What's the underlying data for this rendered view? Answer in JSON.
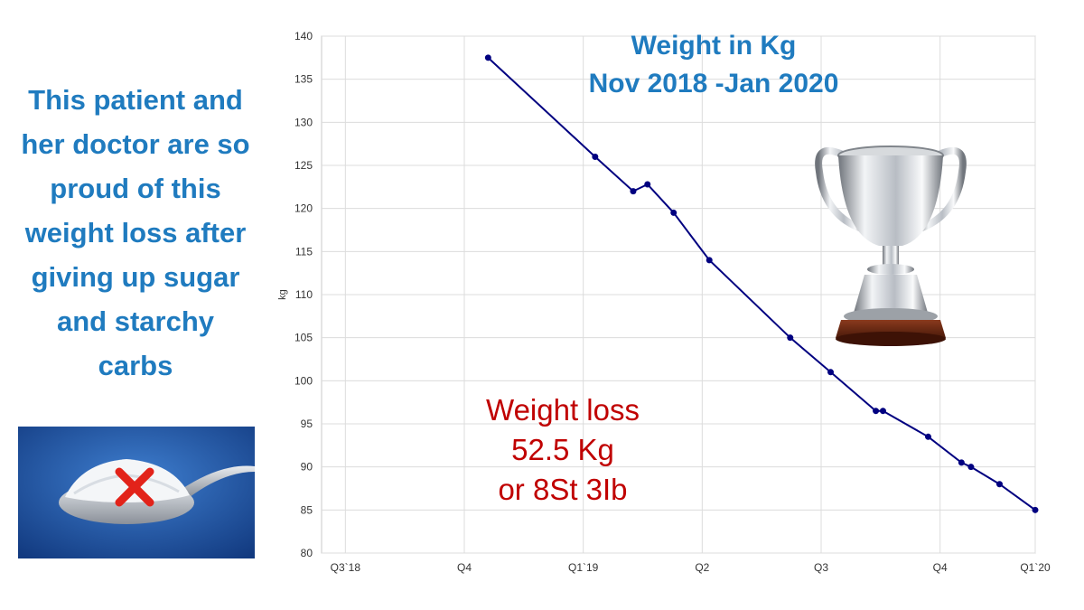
{
  "left_panel": {
    "lines": [
      "This patient and",
      "her doctor are so",
      "proud of this",
      "weight loss after",
      "giving up sugar",
      "and starchy",
      "carbs"
    ]
  },
  "annotation": {
    "lines": [
      "Weight loss",
      "52.5 Kg",
      "or 8St 3Ib"
    ]
  },
  "colors": {
    "accent_blue": "#1f7bbf",
    "annotation_red": "#c00000",
    "line": "#000080",
    "grid": "#dcdcdc"
  },
  "chart_data": {
    "type": "line",
    "title_lines": [
      "Weight in Kg",
      "Nov 2018 -Jan 2020"
    ],
    "xlabel": "",
    "ylabel": "kg",
    "ylim": [
      80,
      140
    ],
    "yticks": [
      80,
      85,
      90,
      95,
      100,
      105,
      110,
      115,
      120,
      125,
      130,
      135,
      140
    ],
    "xlim": [
      0,
      30
    ],
    "xticks": [
      {
        "label": "Q3`18",
        "x": 1
      },
      {
        "label": "Q4",
        "x": 6
      },
      {
        "label": "Q1`19",
        "x": 11
      },
      {
        "label": "Q2",
        "x": 16
      },
      {
        "label": "Q3",
        "x": 21
      },
      {
        "label": "Q4",
        "x": 26
      },
      {
        "label": "Q1`20",
        "x": 30
      }
    ],
    "grid": true,
    "series": [
      {
        "name": "Weight",
        "x": [
          7.0,
          11.5,
          13.1,
          13.7,
          14.8,
          16.3,
          19.7,
          21.4,
          23.3,
          23.6,
          25.5,
          26.9,
          27.3,
          28.5,
          30.0
        ],
        "values": [
          137.5,
          126.0,
          122.0,
          122.8,
          119.5,
          114.0,
          105.0,
          101.0,
          96.5,
          96.5,
          93.5,
          90.5,
          90.0,
          88.0,
          85.0
        ]
      }
    ]
  }
}
